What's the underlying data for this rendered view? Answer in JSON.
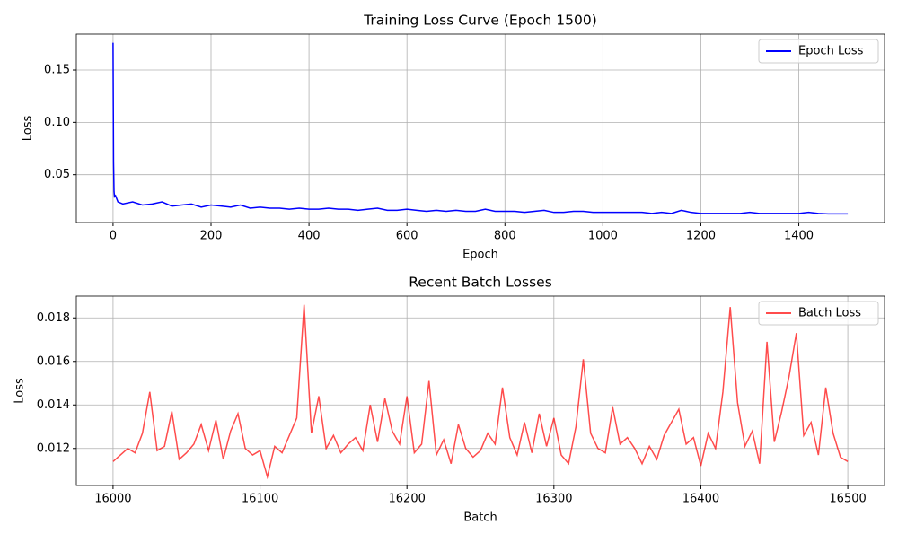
{
  "chart_data": [
    {
      "type": "line",
      "title": "Training Loss Curve (Epoch 1500)",
      "xlabel": "Epoch",
      "ylabel": "Loss",
      "x": [
        0,
        1,
        2,
        3,
        5,
        10,
        15,
        20,
        40,
        60,
        80,
        100,
        120,
        140,
        160,
        180,
        200,
        220,
        240,
        260,
        280,
        300,
        320,
        340,
        360,
        380,
        400,
        420,
        440,
        460,
        480,
        500,
        520,
        540,
        560,
        580,
        600,
        620,
        640,
        660,
        680,
        700,
        720,
        740,
        760,
        780,
        800,
        820,
        840,
        860,
        880,
        900,
        920,
        940,
        960,
        980,
        1000,
        1020,
        1040,
        1060,
        1080,
        1100,
        1120,
        1140,
        1160,
        1180,
        1200,
        1220,
        1240,
        1260,
        1280,
        1300,
        1320,
        1340,
        1360,
        1380,
        1400,
        1420,
        1440,
        1460,
        1480,
        1500
      ],
      "series": [
        {
          "name": "Epoch Loss",
          "color": "#0000ff",
          "alpha": 1,
          "values": [
            0.176,
            0.062,
            0.034,
            0.029,
            0.03,
            0.024,
            0.023,
            0.022,
            0.024,
            0.021,
            0.022,
            0.024,
            0.02,
            0.021,
            0.022,
            0.019,
            0.021,
            0.02,
            0.019,
            0.021,
            0.018,
            0.019,
            0.018,
            0.018,
            0.017,
            0.018,
            0.017,
            0.017,
            0.018,
            0.017,
            0.017,
            0.016,
            0.017,
            0.018,
            0.016,
            0.016,
            0.017,
            0.016,
            0.015,
            0.016,
            0.015,
            0.016,
            0.015,
            0.015,
            0.017,
            0.015,
            0.015,
            0.015,
            0.014,
            0.015,
            0.016,
            0.014,
            0.014,
            0.015,
            0.015,
            0.014,
            0.014,
            0.014,
            0.014,
            0.014,
            0.014,
            0.013,
            0.014,
            0.013,
            0.016,
            0.014,
            0.013,
            0.013,
            0.013,
            0.013,
            0.013,
            0.014,
            0.013,
            0.013,
            0.013,
            0.013,
            0.013,
            0.014,
            0.013,
            0.0125,
            0.0125,
            0.0125
          ]
        }
      ],
      "xlim": [
        -75,
        1575
      ],
      "xticks": [
        0,
        200,
        400,
        600,
        800,
        1000,
        1200,
        1400
      ],
      "ylim": [
        0.0043,
        0.1843
      ],
      "yticks": [
        0.05,
        {
          "value": 0.1,
          "label": "0.10"
        },
        0.15
      ],
      "grid": true,
      "legend": "upper right"
    },
    {
      "type": "line",
      "title": "Recent Batch Losses",
      "xlabel": "Batch",
      "ylabel": "Loss",
      "x": [
        16000,
        16005,
        16010,
        16015,
        16020,
        16025,
        16030,
        16035,
        16040,
        16045,
        16050,
        16055,
        16060,
        16065,
        16070,
        16075,
        16080,
        16085,
        16090,
        16095,
        16100,
        16105,
        16110,
        16115,
        16120,
        16125,
        16130,
        16135,
        16140,
        16145,
        16150,
        16155,
        16160,
        16165,
        16170,
        16175,
        16180,
        16185,
        16190,
        16195,
        16200,
        16205,
        16210,
        16215,
        16220,
        16225,
        16230,
        16235,
        16240,
        16245,
        16250,
        16255,
        16260,
        16265,
        16270,
        16275,
        16280,
        16285,
        16290,
        16295,
        16300,
        16305,
        16310,
        16315,
        16320,
        16325,
        16330,
        16335,
        16340,
        16345,
        16350,
        16355,
        16360,
        16365,
        16370,
        16375,
        16380,
        16385,
        16390,
        16395,
        16400,
        16405,
        16410,
        16415,
        16420,
        16425,
        16430,
        16435,
        16440,
        16445,
        16450,
        16455,
        16460,
        16465,
        16470,
        16475,
        16480,
        16485,
        16490,
        16495,
        16500
      ],
      "series": [
        {
          "name": "Batch Loss",
          "color": "#ff0000",
          "alpha": 0.7,
          "values": [
            0.0114,
            0.0117,
            0.012,
            0.0118,
            0.0127,
            0.0146,
            0.0119,
            0.0121,
            0.0137,
            0.0115,
            0.0118,
            0.0122,
            0.0131,
            0.0119,
            0.0133,
            0.0115,
            0.0128,
            0.0136,
            0.012,
            0.0117,
            0.0119,
            0.0107,
            0.0121,
            0.0118,
            0.0126,
            0.0134,
            0.0186,
            0.0127,
            0.0144,
            0.012,
            0.0126,
            0.0118,
            0.0122,
            0.0125,
            0.0119,
            0.014,
            0.0123,
            0.0143,
            0.0128,
            0.0122,
            0.0144,
            0.0118,
            0.0122,
            0.0151,
            0.0117,
            0.0124,
            0.0113,
            0.0131,
            0.012,
            0.0116,
            0.0119,
            0.0127,
            0.0122,
            0.0148,
            0.0125,
            0.0117,
            0.0132,
            0.0118,
            0.0136,
            0.0121,
            0.0134,
            0.0117,
            0.0113,
            0.013,
            0.0161,
            0.0127,
            0.012,
            0.0118,
            0.0139,
            0.0122,
            0.0125,
            0.012,
            0.0113,
            0.0121,
            0.0115,
            0.0126,
            0.0132,
            0.0138,
            0.0122,
            0.0125,
            0.0112,
            0.0127,
            0.012,
            0.0146,
            0.0185,
            0.0141,
            0.0121,
            0.0128,
            0.0113,
            0.0169,
            0.0123,
            0.0137,
            0.0153,
            0.0173,
            0.0126,
            0.0132,
            0.0117,
            0.0148,
            0.0127,
            0.0116,
            0.0114
          ]
        }
      ],
      "xlim": [
        15975,
        16525
      ],
      "xticks": [
        16000,
        16100,
        16200,
        16300,
        16400,
        16500
      ],
      "ylim": [
        0.0103,
        0.019
      ],
      "yticks": [
        0.012,
        0.014,
        0.016,
        0.018
      ],
      "grid": true,
      "legend": "upper right"
    }
  ]
}
